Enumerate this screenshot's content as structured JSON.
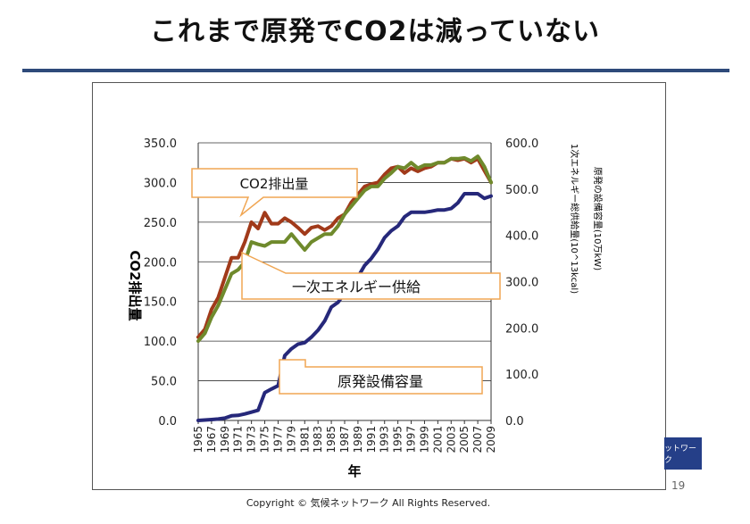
{
  "slide": {
    "title": "これまで原発でCO2は減っていない",
    "copyright": "Copyright ©  気候ネットワーク  All Rights Reserved.",
    "page_number": "19",
    "badge_text": "ットワーク"
  },
  "colors": {
    "co2": "#a13a1a",
    "energy": "#6f8a2c",
    "nuclear": "#26287a",
    "callout_border": "#f0a653",
    "rule": "#2e4a7a"
  },
  "chart_data": {
    "type": "line",
    "xlabel": "年",
    "ylabel_left": "CO2排出量",
    "ylabel_right_1": "1次エネルギー総供給量(10^13kcal)",
    "ylabel_right_2": "原発の設備容量(10万kW)",
    "ylim_left": [
      0,
      350
    ],
    "ylim_right": [
      0,
      600
    ],
    "yticks_left": [
      "0.0",
      "50.0",
      "100.0",
      "150.0",
      "200.0",
      "250.0",
      "300.0",
      "350.0"
    ],
    "yticks_right": [
      "0.0",
      "100.0",
      "200.0",
      "300.0",
      "400.0",
      "500.0",
      "600.0"
    ],
    "x": [
      1965,
      1966,
      1967,
      1968,
      1969,
      1970,
      1971,
      1972,
      1973,
      1974,
      1975,
      1976,
      1977,
      1978,
      1979,
      1980,
      1981,
      1982,
      1983,
      1984,
      1985,
      1986,
      1987,
      1988,
      1989,
      1990,
      1991,
      1992,
      1993,
      1994,
      1995,
      1996,
      1997,
      1998,
      1999,
      2000,
      2001,
      2002,
      2003,
      2004,
      2005,
      2006,
      2007,
      2008,
      2009
    ],
    "xtick_labels": [
      "1965",
      "1967",
      "1969",
      "1971",
      "1973",
      "1975",
      "1977",
      "1979",
      "1981",
      "1983",
      "1985",
      "1987",
      "1989",
      "1991",
      "1993",
      "1995",
      "1997",
      "1999",
      "2001",
      "2003",
      "2005",
      "2007",
      "2009"
    ],
    "grid": "horizontal",
    "series": [
      {
        "name": "CO2排出量",
        "axis": "left",
        "color": "#a13a1a",
        "values": [
          105,
          115,
          140,
          155,
          180,
          205,
          205,
          225,
          250,
          242,
          262,
          248,
          248,
          255,
          250,
          243,
          235,
          243,
          245,
          240,
          245,
          255,
          260,
          275,
          285,
          295,
          298,
          300,
          310,
          318,
          320,
          312,
          318,
          314,
          318,
          320,
          325,
          325,
          330,
          328,
          330,
          325,
          330,
          315,
          300
        ]
      },
      {
        "name": "一次エネルギー供給",
        "axis": "left",
        "color": "#6f8a2c",
        "values": [
          100,
          110,
          130,
          145,
          165,
          185,
          190,
          200,
          225,
          222,
          220,
          225,
          225,
          225,
          235,
          225,
          215,
          225,
          230,
          235,
          235,
          245,
          260,
          270,
          280,
          290,
          295,
          295,
          305,
          312,
          320,
          318,
          325,
          318,
          322,
          322,
          325,
          325,
          330,
          330,
          331,
          327,
          333,
          320,
          300
        ]
      },
      {
        "name": "原発設備容量",
        "axis": "right",
        "color": "#26287a",
        "values": [
          0,
          1,
          2,
          3,
          5,
          10,
          11,
          14,
          18,
          22,
          60,
          68,
          75,
          140,
          155,
          165,
          168,
          180,
          195,
          215,
          245,
          255,
          275,
          300,
          310,
          335,
          350,
          370,
          395,
          410,
          420,
          440,
          450,
          450,
          450,
          452,
          455,
          455,
          458,
          470,
          490,
          490,
          490,
          480,
          485
        ]
      }
    ],
    "annotations": [
      {
        "text": "CO2排出量",
        "target": "co2"
      },
      {
        "text": "一次エネルギー供給",
        "target": "energy"
      },
      {
        "text": "原発設備容量",
        "target": "nuclear"
      }
    ]
  }
}
